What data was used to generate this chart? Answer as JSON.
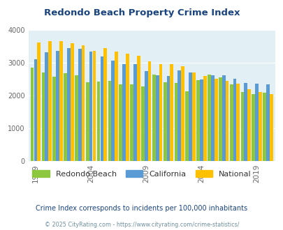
{
  "title": "Redondo Beach Property Crime Index",
  "title_color": "#1a4480",
  "years": [
    1999,
    2000,
    2001,
    2002,
    2003,
    2004,
    2005,
    2006,
    2007,
    2008,
    2009,
    2010,
    2011,
    2012,
    2013,
    2014,
    2015,
    2016,
    2017,
    2018,
    2019,
    2020
  ],
  "redondo_beach": [
    2840,
    2700,
    2570,
    2680,
    2610,
    2410,
    2430,
    2440,
    2330,
    2330,
    2270,
    2630,
    2400,
    2380,
    2120,
    2460,
    2640,
    2550,
    2330,
    2100,
    2040,
    2090
  ],
  "california": [
    3100,
    3310,
    3350,
    3440,
    3430,
    3330,
    3180,
    3060,
    2960,
    2950,
    2750,
    2620,
    2590,
    2760,
    2700,
    2480,
    2610,
    2610,
    2500,
    2390,
    2370,
    2340
  ],
  "national": [
    3620,
    3660,
    3650,
    3590,
    3520,
    3350,
    3440,
    3340,
    3280,
    3220,
    3040,
    2960,
    2950,
    2890,
    2700,
    2600,
    2510,
    2450,
    2360,
    2200,
    2110,
    2050
  ],
  "colors": {
    "redondo_beach": "#8dc63f",
    "california": "#5b9bd5",
    "national": "#ffc000"
  },
  "plot_bg": "#e2f0f5",
  "ylim": [
    0,
    4000
  ],
  "yticks": [
    0,
    1000,
    2000,
    3000,
    4000
  ],
  "xlabel_ticks": [
    1999,
    2004,
    2009,
    2014,
    2019
  ],
  "legend_labels": [
    "Redondo Beach",
    "California",
    "National"
  ],
  "subtitle": "Crime Index corresponds to incidents per 100,000 inhabitants",
  "subtitle_color": "#1a4480",
  "footnote": "© 2025 CityRating.com - https://www.cityrating.com/crime-statistics/",
  "footnote_color": "#7090a0"
}
